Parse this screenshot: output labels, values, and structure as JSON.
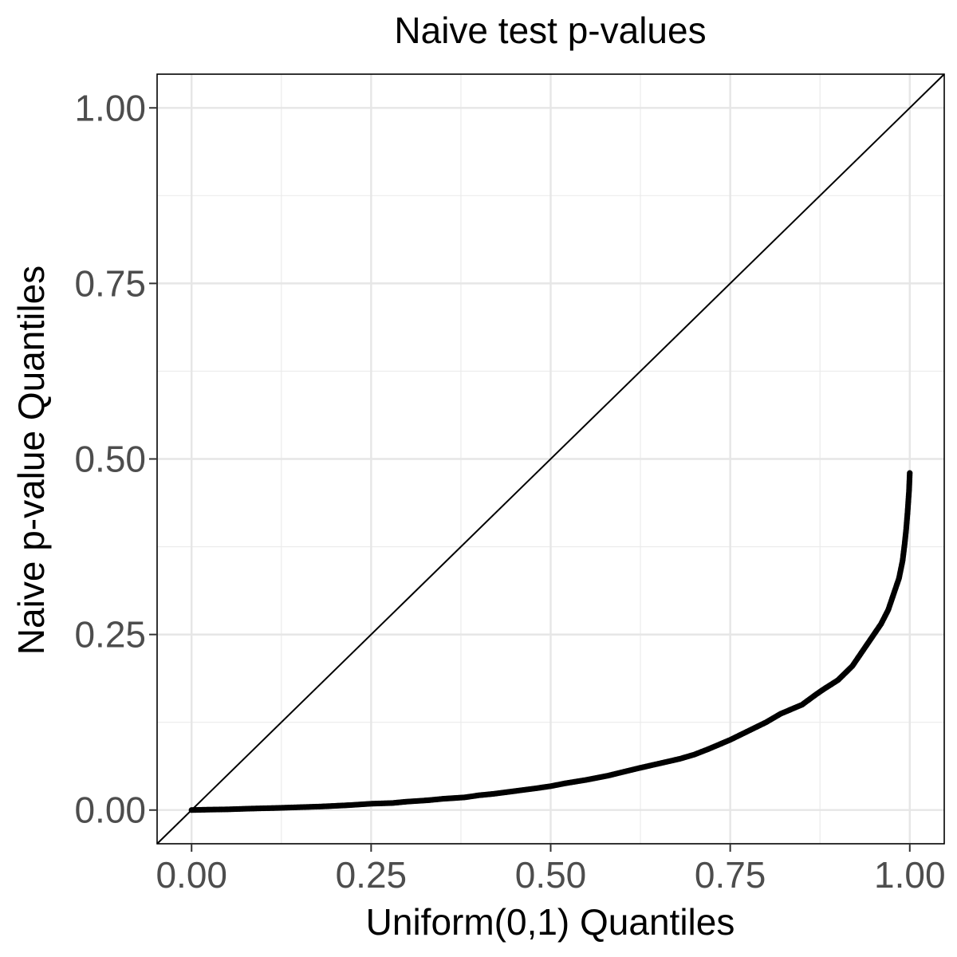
{
  "chart_data": {
    "type": "scatter",
    "title": "Naive test p-values",
    "xlabel": "Uniform(0,1) Quantiles",
    "ylabel": "Naive p-value Quantiles",
    "xlim": [
      -0.048,
      1.048
    ],
    "ylim": [
      -0.048,
      1.048
    ],
    "x_ticks": [
      0.0,
      0.25,
      0.5,
      0.75,
      1.0
    ],
    "y_ticks": [
      0.0,
      0.25,
      0.5,
      0.75,
      1.0
    ],
    "x_tick_labels": [
      "0.00",
      "0.25",
      "0.50",
      "0.75",
      "1.00"
    ],
    "y_tick_labels": [
      "0.00",
      "0.25",
      "0.50",
      "0.75",
      "1.00"
    ],
    "grid": true,
    "legend": "none",
    "reference_line": {
      "x": [
        -0.048,
        1.048
      ],
      "y": [
        -0.048,
        1.048
      ],
      "color": "#000000"
    },
    "point_color": "#000000",
    "series": [
      {
        "x": [
          0.0,
          0.02,
          0.05,
          0.08,
          0.1,
          0.12,
          0.15,
          0.18,
          0.2,
          0.22,
          0.25,
          0.28,
          0.3,
          0.33,
          0.35,
          0.38,
          0.4,
          0.42,
          0.45,
          0.48,
          0.5,
          0.52,
          0.55,
          0.58,
          0.6,
          0.62,
          0.65,
          0.68,
          0.7,
          0.72,
          0.75,
          0.78,
          0.8,
          0.82,
          0.85,
          0.87,
          0.88,
          0.9,
          0.91,
          0.92,
          0.93,
          0.94,
          0.95,
          0.96,
          0.97,
          0.975,
          0.98,
          0.985,
          0.99,
          0.993,
          0.995,
          0.997,
          0.998,
          0.999,
          1.0
        ],
        "y": [
          0.0,
          0.0005,
          0.001,
          0.002,
          0.0025,
          0.003,
          0.004,
          0.005,
          0.006,
          0.007,
          0.009,
          0.01,
          0.012,
          0.014,
          0.016,
          0.018,
          0.021,
          0.023,
          0.027,
          0.031,
          0.034,
          0.038,
          0.043,
          0.049,
          0.054,
          0.059,
          0.066,
          0.073,
          0.079,
          0.087,
          0.1,
          0.115,
          0.125,
          0.137,
          0.15,
          0.165,
          0.172,
          0.185,
          0.195,
          0.205,
          0.22,
          0.235,
          0.25,
          0.265,
          0.285,
          0.3,
          0.315,
          0.33,
          0.355,
          0.38,
          0.4,
          0.425,
          0.44,
          0.455,
          0.48
        ]
      }
    ]
  }
}
